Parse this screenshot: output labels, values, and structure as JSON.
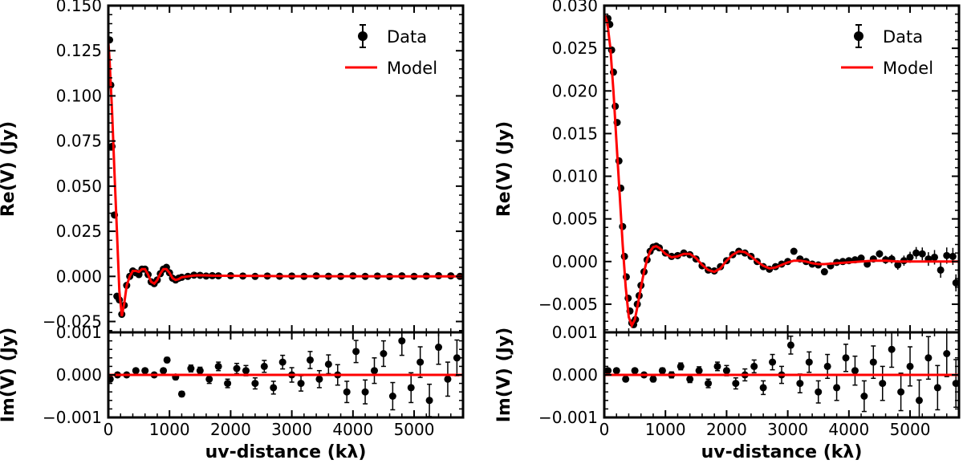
{
  "chart_data": [
    {
      "id": "left",
      "type": "line",
      "title": "",
      "xlabel": "uv-distance (kλ)",
      "xlim": [
        0,
        5800
      ],
      "xticks": [
        0,
        1000,
        2000,
        3000,
        4000,
        5000
      ],
      "xtick_labels": [
        "0",
        "1000",
        "2000",
        "3000",
        "4000",
        "5000"
      ],
      "legend": {
        "position": "top-right",
        "entries": [
          "Data",
          "Model"
        ]
      },
      "colors": {
        "data": "#000000",
        "model": "#ff0000"
      },
      "top": {
        "ylabel": "Re(V) (Jy)",
        "ylim": [
          -0.031,
          0.15
        ],
        "yticks": [
          -0.025,
          0,
          0.025,
          0.05,
          0.075,
          0.1,
          0.125,
          0.15
        ],
        "ytick_labels": [
          "−0.025",
          "0.000",
          "0.025",
          "0.050",
          "0.075",
          "0.100",
          "0.125",
          "0.150"
        ],
        "model": {
          "x": [
            0,
            20,
            60,
            100,
            140,
            180,
            220,
            260,
            300,
            350,
            400,
            450,
            500,
            550,
            600,
            650,
            700,
            750,
            800,
            850,
            900,
            950,
            1000,
            1050,
            1100,
            1150,
            1200,
            1300,
            1400,
            1500,
            1700,
            2000,
            2500,
            3000,
            4000,
            5000,
            5800
          ],
          "y": [
            0.13,
            0.12,
            0.092,
            0.058,
            0.025,
            -0.008,
            -0.022,
            -0.015,
            -0.005,
            0.0,
            0.003,
            0.003,
            0.0025,
            0.004,
            0.004,
            0.001,
            -0.003,
            -0.004,
            -0.002,
            0.0015,
            0.004,
            0.004,
            0.002,
            -0.001,
            -0.002,
            -0.0015,
            -0.0005,
            0.0,
            0.0005,
            0.0006,
            0.0004,
            0.0003,
            0.0002,
            0.0001,
            0.0001,
            0.0,
            0.0
          ]
        },
        "data": {
          "x": [
            20,
            40,
            60,
            100,
            140,
            180,
            220,
            260,
            300,
            350,
            400,
            450,
            500,
            550,
            600,
            650,
            700,
            750,
            800,
            850,
            900,
            950,
            1000,
            1050,
            1100,
            1150,
            1200,
            1300,
            1400,
            1500,
            1600,
            1700,
            1800,
            2000,
            2200,
            2400,
            2600,
            2800,
            3000,
            3200,
            3400,
            3600,
            3800,
            4000,
            4200,
            4400,
            4600,
            4800,
            5000,
            5200,
            5400,
            5600,
            5750
          ],
          "y": [
            0.131,
            0.106,
            0.072,
            0.034,
            -0.011,
            -0.013,
            -0.021,
            -0.016,
            -0.005,
            0.0,
            0.003,
            0.002,
            0.001,
            0.004,
            0.004,
            0.001,
            -0.003,
            -0.004,
            -0.002,
            0.0015,
            0.004,
            0.005,
            0.002,
            -0.001,
            -0.002,
            -0.001,
            -0.0005,
            0.0,
            0.0007,
            0.0006,
            0.0002,
            0.0004,
            0.0003,
            0.0004,
            0.0002,
            0.0,
            0.0002,
            0.0001,
            0.0002,
            0.0,
            0.0003,
            0.0001,
            0.0,
            0.0003,
            0.0,
            0.0002,
            -0.0001,
            0.0003,
            0.0,
            0.0002,
            0.0004,
            0.0003,
            0.0
          ]
        }
      },
      "bottom": {
        "ylabel": "Im(V) (Jy)",
        "ylim": [
          -0.001,
          0.001
        ],
        "yticks": [
          -0.001,
          0,
          0.001
        ],
        "ytick_labels": [
          "−0.001",
          "0.000",
          "0.001"
        ],
        "model_y": 0.0,
        "data": {
          "x": [
            30,
            150,
            300,
            450,
            600,
            750,
            900,
            960,
            1100,
            1200,
            1350,
            1500,
            1650,
            1800,
            1950,
            2100,
            2250,
            2400,
            2550,
            2700,
            2850,
            3000,
            3150,
            3300,
            3450,
            3600,
            3750,
            3900,
            4050,
            4200,
            4350,
            4500,
            4650,
            4800,
            4950,
            5100,
            5250,
            5400,
            5550,
            5700
          ],
          "y": [
            -0.0001,
            0.0,
            0.0,
            0.0001,
            0.0001,
            0.0,
            0.0001,
            0.00035,
            -5e-05,
            -0.00045,
            0.00015,
            0.0001,
            -0.0001,
            0.0002,
            -0.0002,
            0.00015,
            0.0001,
            -0.0002,
            0.0002,
            -0.0003,
            0.0003,
            0.0,
            -0.0002,
            0.00035,
            -0.0001,
            0.00025,
            0.0,
            -0.0004,
            0.00055,
            -0.0004,
            0.0001,
            0.0005,
            -0.0005,
            0.0008,
            -0.0003,
            0.0003,
            -0.0006,
            0.00065,
            -0.0001,
            0.0004
          ],
          "err": [
            5e-05,
            5e-05,
            5e-05,
            5e-05,
            5e-05,
            5e-05,
            5e-05,
            6e-05,
            6e-05,
            6e-05,
            8e-05,
            8e-05,
            0.0001,
            0.0001,
            0.0001,
            0.00012,
            0.00012,
            0.00013,
            0.00014,
            0.00015,
            0.00016,
            0.00017,
            0.00018,
            0.0002,
            0.0002,
            0.00022,
            0.00024,
            0.00025,
            0.00026,
            0.00028,
            0.0003,
            0.0003,
            0.00032,
            0.00034,
            0.00035,
            0.00036,
            0.00038,
            0.0004,
            0.0004,
            0.00042
          ]
        }
      }
    },
    {
      "id": "right",
      "type": "line",
      "title": "",
      "xlabel": "uv-distance (kλ)",
      "xlim": [
        0,
        5800
      ],
      "xticks": [
        0,
        1000,
        2000,
        3000,
        4000,
        5000
      ],
      "xtick_labels": [
        "0",
        "1000",
        "2000",
        "3000",
        "4000",
        "5000"
      ],
      "legend": {
        "position": "top-right",
        "entries": [
          "Data",
          "Model"
        ]
      },
      "colors": {
        "data": "#000000",
        "model": "#ff0000"
      },
      "top": {
        "ylabel": "Re(V) (Jy)",
        "ylim": [
          -0.0083,
          0.03
        ],
        "yticks": [
          -0.005,
          0,
          0.005,
          0.01,
          0.015,
          0.02,
          0.025,
          0.03
        ],
        "ytick_labels": [
          "−0.005",
          "0.000",
          "0.005",
          "0.010",
          "0.015",
          "0.020",
          "0.025",
          "0.030"
        ],
        "model": {
          "x": [
            0,
            50,
            100,
            150,
            200,
            250,
            300,
            350,
            400,
            450,
            500,
            550,
            600,
            650,
            700,
            750,
            800,
            850,
            900,
            1000,
            1100,
            1200,
            1300,
            1400,
            1500,
            1600,
            1700,
            1800,
            1900,
            2000,
            2100,
            2200,
            2300,
            2400,
            2500,
            2600,
            2700,
            2800,
            2900,
            3000,
            3100,
            3200,
            3300,
            3400,
            3500,
            3600,
            3800,
            4000,
            4200,
            4400,
            4600,
            4800,
            5000,
            5400,
            5800
          ],
          "y": [
            0.029,
            0.028,
            0.025,
            0.02,
            0.014,
            0.008,
            0.002,
            -0.003,
            -0.0065,
            -0.0075,
            -0.0068,
            -0.005,
            -0.003,
            -0.0012,
            0.0002,
            0.0012,
            0.0017,
            0.0018,
            0.0016,
            0.0009,
            0.0005,
            0.0006,
            0.0009,
            0.0009,
            0.0004,
            -0.0004,
            -0.001,
            -0.0012,
            -0.0008,
            0.0001,
            0.0008,
            0.0012,
            0.0011,
            0.0006,
            0.0,
            -0.0005,
            -0.0008,
            -0.0007,
            -0.0004,
            -0.0001,
            0.0001,
            0.0001,
            0.0,
            -0.0002,
            -0.0003,
            -0.0003,
            -0.0002,
            -0.0001,
            0.0,
            0.0001,
            0.0001,
            0.0,
            0.0,
            0.0,
            0.0
          ]
        },
        "data": {
          "x": [
            60,
            90,
            120,
            150,
            180,
            210,
            240,
            270,
            300,
            330,
            360,
            390,
            420,
            450,
            480,
            510,
            540,
            570,
            600,
            650,
            700,
            750,
            800,
            850,
            900,
            1000,
            1100,
            1200,
            1300,
            1400,
            1500,
            1600,
            1700,
            1800,
            1900,
            2000,
            2100,
            2200,
            2300,
            2400,
            2500,
            2600,
            2700,
            2800,
            2900,
            3000,
            3100,
            3200,
            3300,
            3400,
            3500,
            3600,
            3700,
            3800,
            3900,
            4000,
            4100,
            4200,
            4300,
            4400,
            4500,
            4600,
            4700,
            4800,
            4900,
            5000,
            5100,
            5200,
            5300,
            5400,
            5500,
            5600,
            5700,
            5750
          ],
          "y": [
            0.0285,
            0.0278,
            0.0248,
            0.0222,
            0.0182,
            0.0163,
            0.0118,
            0.0086,
            0.0041,
            0.0006,
            -0.0018,
            -0.0043,
            -0.0058,
            -0.0072,
            -0.0074,
            -0.0068,
            -0.005,
            -0.004,
            -0.0028,
            -0.0012,
            0.0002,
            0.0012,
            0.0017,
            0.0018,
            0.0016,
            0.001,
            0.0006,
            0.0007,
            0.001,
            0.0008,
            0.0003,
            -0.0005,
            -0.001,
            -0.0011,
            -0.0006,
            0.0001,
            0.0008,
            0.0012,
            0.001,
            0.0006,
            0.0,
            -0.0006,
            -0.0009,
            -0.0006,
            -0.0003,
            0.0,
            0.0012,
            0.0003,
            0.0,
            -0.0003,
            -0.0004,
            -0.0012,
            -0.0005,
            -0.0001,
            0.0,
            0.0001,
            0.0002,
            0.0004,
            -0.0003,
            0.0003,
            0.0009,
            0.0002,
            0.0003,
            -0.0004,
            0.0001,
            0.0005,
            0.001,
            0.0009,
            0.0003,
            0.0005,
            -0.001,
            0.0007,
            0.0006,
            -0.0025
          ],
          "err": [
            5e-05,
            5e-05,
            5e-05,
            5e-05,
            5e-05,
            5e-05,
            5e-05,
            5e-05,
            5e-05,
            5e-05,
            5e-05,
            5e-05,
            5e-05,
            5e-05,
            5e-05,
            5e-05,
            5e-05,
            5e-05,
            5e-05,
            5e-05,
            5e-05,
            5e-05,
            5e-05,
            5e-05,
            5e-05,
            5e-05,
            5e-05,
            5e-05,
            5e-05,
            5e-05,
            5e-05,
            5e-05,
            5e-05,
            5e-05,
            5e-05,
            6e-05,
            6e-05,
            6e-05,
            7e-05,
            7e-05,
            8e-05,
            8e-05,
            9e-05,
            0.0001,
            0.0001,
            0.00012,
            0.00013,
            0.00014,
            0.00015,
            0.00017,
            0.00018,
            0.0002,
            0.00022,
            0.00024,
            0.00026,
            0.00028,
            0.0003,
            0.00033,
            0.00036,
            0.0004,
            0.00044,
            0.00048,
            0.00052,
            0.00056,
            0.0006,
            0.00065,
            0.0007,
            0.00075,
            0.0008,
            0.00085,
            0.0009,
            0.00095,
            0.001,
            0.001
          ]
        }
      },
      "bottom": {
        "ylabel": "Im(V) (Jy)",
        "ylim": [
          -0.001,
          0.001
        ],
        "yticks": [
          -0.001,
          0,
          0.001
        ],
        "ytick_labels": [
          "−0.001",
          "0.000",
          "0.001"
        ],
        "model_y": 0.0,
        "data": {
          "x": [
            60,
            200,
            350,
            500,
            650,
            800,
            950,
            1100,
            1250,
            1400,
            1550,
            1700,
            1850,
            2000,
            2150,
            2300,
            2450,
            2600,
            2750,
            2900,
            3050,
            3200,
            3350,
            3500,
            3650,
            3800,
            3950,
            4100,
            4250,
            4400,
            4550,
            4700,
            4850,
            5000,
            5150,
            5300,
            5450,
            5600,
            5750
          ],
          "y": [
            0.0001,
            0.0001,
            -0.0001,
            0.0001,
            0.0,
            -0.0001,
            0.0001,
            0.0,
            0.0002,
            -0.0001,
            0.0001,
            -0.0002,
            0.0002,
            0.0001,
            -0.0002,
            0.0,
            0.0002,
            -0.0003,
            0.0003,
            0.0,
            0.0007,
            -0.0002,
            0.0003,
            -0.0004,
            0.0002,
            -0.0003,
            0.0004,
            0.0001,
            -0.0005,
            0.0003,
            -0.0002,
            0.0006,
            -0.0004,
            0.0002,
            -0.0006,
            0.0004,
            -0.0003,
            0.0005,
            -0.0002
          ],
          "err": [
            5e-05,
            5e-05,
            5e-05,
            5e-05,
            5e-05,
            6e-05,
            6e-05,
            7e-05,
            8e-05,
            8e-05,
            9e-05,
            0.0001,
            0.0001,
            0.00012,
            0.00013,
            0.00014,
            0.00015,
            0.00016,
            0.00018,
            0.0002,
            0.00021,
            0.00022,
            0.00024,
            0.00026,
            0.00028,
            0.0003,
            0.00032,
            0.00034,
            0.00036,
            0.00038,
            0.0004,
            0.00042,
            0.00044,
            0.00046,
            0.00048,
            0.0005,
            0.00052,
            0.00054,
            0.00056
          ]
        }
      }
    }
  ]
}
